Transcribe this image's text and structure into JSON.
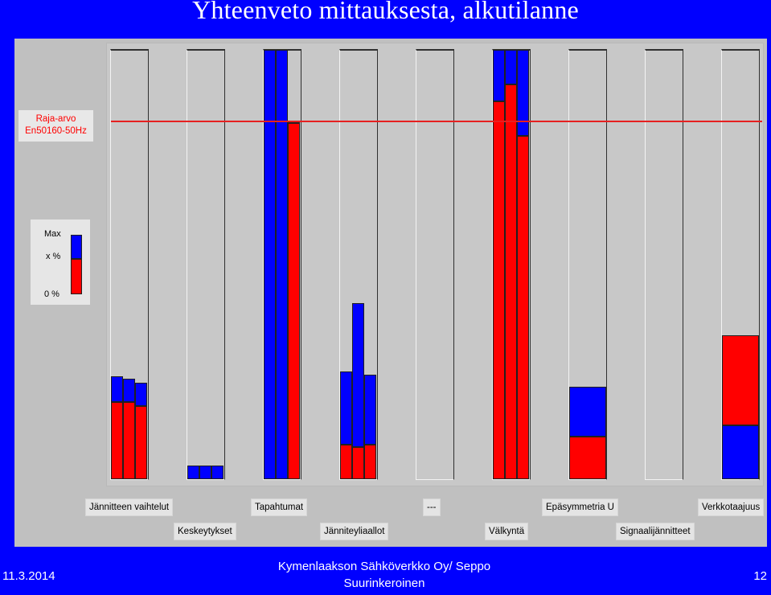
{
  "title": "Yhteenveto mittauksesta, alkutilanne",
  "limit_box": {
    "line1": "Raja-arvo",
    "line2": "En50160-50Hz"
  },
  "legend": {
    "max": "Max",
    "x_pct": "x %",
    "zero_pct": "0 %"
  },
  "labels": [
    "Jännitteen vaihtelut",
    "Keskeytykset",
    "Tapahtumat",
    "Jänniteyliaallot",
    "---",
    "Välkyntä",
    "Epäsymmetria U",
    "Signaalijännitteet",
    "Verkkotaajuus"
  ],
  "chart_data": {
    "type": "bar",
    "limit_fraction": 0.835,
    "columns": [
      {
        "label": "Jännitteen vaihtelut",
        "bars": [
          {
            "red": 0.18,
            "max": 0.24
          },
          {
            "red": 0.18,
            "max": 0.235
          },
          {
            "red": 0.17,
            "max": 0.225
          }
        ]
      },
      {
        "label": "Keskeytykset",
        "bars": [
          {
            "red": 0.0,
            "max": 0.032
          },
          {
            "red": 0.0,
            "max": 0.032
          },
          {
            "red": 0.0,
            "max": 0.032
          }
        ]
      },
      {
        "label": "Tapahtumat",
        "bars": [
          {
            "red": 0.0,
            "max": 1.0
          },
          {
            "red": 0.0,
            "max": 1.0
          },
          {
            "red": 0.83,
            "max": 0.835
          }
        ]
      },
      {
        "label": "Jänniteyliaallot",
        "bars": [
          {
            "red": 0.08,
            "max": 0.25
          },
          {
            "red": 0.075,
            "max": 0.41
          },
          {
            "red": 0.08,
            "max": 0.243
          }
        ]
      },
      {
        "label": "---",
        "bars": [
          {
            "red": 0.0,
            "max": 0.0
          },
          {
            "red": 0.0,
            "max": 0.0
          },
          {
            "red": 0.0,
            "max": 0.0
          }
        ]
      },
      {
        "label": "Välkyntä",
        "bars": [
          {
            "red": 0.88,
            "max": 1.0
          },
          {
            "red": 0.92,
            "max": 1.0
          },
          {
            "red": 0.8,
            "max": 1.0
          }
        ]
      },
      {
        "label": "Epäsymmetria U",
        "bars": [
          {
            "red": 0.1,
            "max": 0.215
          }
        ]
      },
      {
        "label": "Signaalijännitteet",
        "bars": []
      },
      {
        "label": "Verkkotaajuus",
        "bars": [
          {
            "red": 0.335,
            "max": 0.335,
            "blue_below": 0.125
          }
        ]
      }
    ],
    "colors": {
      "max": "#0000ff",
      "value": "#ff0000",
      "limit": "#e62020"
    }
  },
  "footer": {
    "date": "11.3.2014",
    "company": "Kymenlaakson Sähköverkko Oy/ Seppo Suurinkeroinen",
    "page": "12"
  }
}
